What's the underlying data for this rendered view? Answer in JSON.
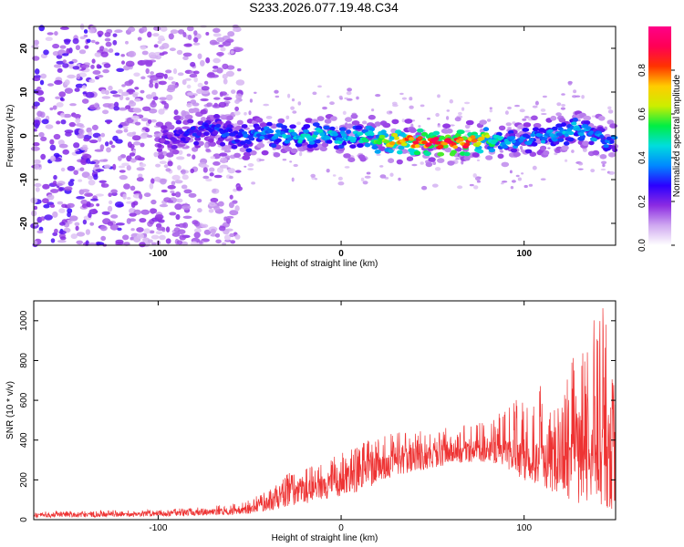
{
  "title": "S233.2026.077.19.48.C34",
  "chart_data": [
    {
      "type": "heatmap",
      "name": "spectrogram",
      "xlabel": "Height of straight line (km)",
      "ylabel": "Frequency (Hz)",
      "xlim": [
        -168,
        150
      ],
      "ylim": [
        -25,
        25
      ],
      "xticks": [
        -100,
        0,
        100
      ],
      "yticks": [
        -20,
        -10,
        0,
        10,
        20
      ],
      "colorbar": {
        "label": "Normalized spectral amplitude",
        "range": [
          0,
          1
        ],
        "ticks": [
          0.0,
          0.2,
          0.4,
          0.6,
          0.8
        ],
        "tick_labels": [
          "0.0",
          "0.2",
          "0.4",
          "0.6",
          "0.8"
        ],
        "colormap": [
          "#ffffff",
          "#cfa8f0",
          "#8c2be2",
          "#2b00ff",
          "#0088ff",
          "#00dddd",
          "#00ee44",
          "#ccee00",
          "#ffcc00",
          "#ff3300",
          "#ff0055",
          "#ff0088"
        ]
      },
      "ridge": {
        "height_km": [
          -100,
          -90,
          -80,
          -70,
          -60,
          -50,
          -40,
          -30,
          -20,
          -10,
          0,
          10,
          20,
          30,
          40,
          50,
          60,
          70,
          80,
          90,
          100,
          110,
          120,
          130,
          140,
          148
        ],
        "frequency_hz": [
          -1,
          0,
          1,
          2,
          0,
          -0.5,
          0.5,
          0,
          -0.5,
          0.5,
          -0.5,
          0,
          -1,
          -1,
          -1.5,
          -1.5,
          -1.8,
          -1.8,
          -0.5,
          -1.5,
          -1,
          0,
          0.5,
          2,
          0,
          -1.5
        ],
        "amplitude": [
          0.18,
          0.25,
          0.28,
          0.3,
          0.32,
          0.35,
          0.38,
          0.42,
          0.46,
          0.48,
          0.42,
          0.45,
          0.62,
          0.72,
          0.8,
          0.85,
          0.92,
          0.85,
          0.6,
          0.4,
          0.35,
          0.38,
          0.4,
          0.42,
          0.38,
          0.35
        ]
      }
    },
    {
      "type": "line",
      "name": "snr",
      "xlabel": "Height of straight line (km)",
      "ylabel": "SNR (10 * v/v)",
      "xlim": [
        -168,
        150
      ],
      "ylim": [
        0,
        1100
      ],
      "xticks": [
        -100,
        0,
        100
      ],
      "yticks": [
        0,
        200,
        400,
        600,
        800,
        1000
      ],
      "color": "#ee3333",
      "series": [
        {
          "name": "SNR",
          "x": [
            -168,
            -140,
            -110,
            -80,
            -60,
            -50,
            -40,
            -30,
            -20,
            -10,
            0,
            10,
            20,
            30,
            40,
            50,
            60,
            70,
            80,
            90,
            100,
            110,
            120,
            130,
            140,
            150
          ],
          "y_envelope_low": [
            10,
            12,
            15,
            20,
            25,
            30,
            40,
            60,
            80,
            100,
            120,
            140,
            180,
            220,
            240,
            260,
            280,
            290,
            290,
            260,
            200,
            150,
            120,
            80,
            60,
            50
          ],
          "y_envelope_high": [
            40,
            45,
            50,
            60,
            80,
            100,
            150,
            230,
            280,
            300,
            340,
            380,
            420,
            440,
            450,
            460,
            470,
            480,
            490,
            560,
            640,
            700,
            750,
            860,
            1100,
            1000
          ],
          "y_mean": [
            25,
            28,
            32,
            40,
            50,
            60,
            90,
            140,
            170,
            190,
            220,
            260,
            300,
            320,
            330,
            340,
            350,
            360,
            360,
            380,
            370,
            360,
            350,
            340,
            330,
            320
          ]
        }
      ]
    }
  ]
}
